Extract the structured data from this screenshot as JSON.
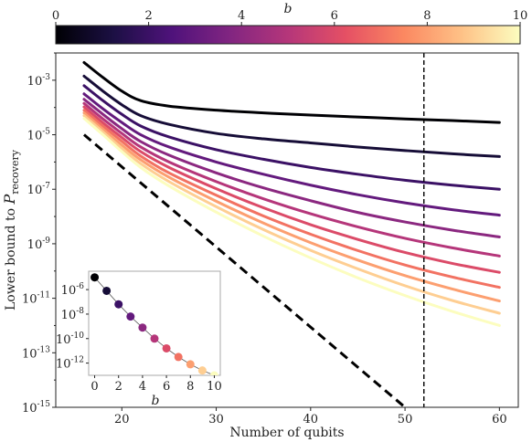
{
  "colormap": {
    "label": "b",
    "min": 0,
    "max": 10,
    "ticks": [
      "0",
      "2",
      "4",
      "6",
      "8",
      "10"
    ],
    "stops": [
      "#000004",
      "#1c1044",
      "#4f127b",
      "#812581",
      "#b5367a",
      "#e55064",
      "#fb8861",
      "#fec287",
      "#fcfdbf"
    ]
  },
  "chart_data": [
    {
      "type": "line",
      "xlabel": "Number of qubits",
      "ylabel_prefix": "Lower bound to ",
      "ylabel_symbol": "P",
      "ylabel_sub": "recovery",
      "xlim": [
        13,
        62
      ],
      "ylim_log10": [
        -15,
        -2
      ],
      "yscale": "log",
      "x_ticks": [
        "20",
        "30",
        "40",
        "50",
        "60"
      ],
      "y_tick_exponents": [
        "-3",
        "-5",
        "-7",
        "-9",
        "-11",
        "-13",
        "-15"
      ],
      "vline_x": 52,
      "vline_style": "dashed",
      "x": [
        16,
        18,
        20,
        22,
        25,
        30,
        35,
        40,
        45,
        50,
        55,
        60
      ],
      "series": [
        {
          "b": 0,
          "log10": [
            -2.35,
            -2.9,
            -3.4,
            -3.75,
            -3.95,
            -4.1,
            -4.2,
            -4.28,
            -4.35,
            -4.42,
            -4.48,
            -4.55
          ]
        },
        {
          "b": 1,
          "log10": [
            -2.85,
            -3.4,
            -3.9,
            -4.3,
            -4.62,
            -4.95,
            -5.15,
            -5.3,
            -5.45,
            -5.58,
            -5.7,
            -5.8
          ]
        },
        {
          "b": 2,
          "log10": [
            -3.2,
            -3.75,
            -4.25,
            -4.68,
            -5.08,
            -5.55,
            -5.9,
            -6.2,
            -6.45,
            -6.67,
            -6.85,
            -7.0
          ]
        },
        {
          "b": 3,
          "log10": [
            -3.5,
            -4.05,
            -4.55,
            -5.0,
            -5.45,
            -6.0,
            -6.45,
            -6.85,
            -7.2,
            -7.5,
            -7.75,
            -7.95
          ]
        },
        {
          "b": 4,
          "log10": [
            -3.7,
            -4.25,
            -4.78,
            -5.25,
            -5.75,
            -6.4,
            -6.95,
            -7.42,
            -7.85,
            -8.2,
            -8.5,
            -8.75
          ]
        },
        {
          "b": 5,
          "log10": [
            -3.85,
            -4.42,
            -4.95,
            -5.45,
            -6.0,
            -6.72,
            -7.35,
            -7.9,
            -8.38,
            -8.8,
            -9.15,
            -9.45
          ]
        },
        {
          "b": 6,
          "log10": [
            -3.98,
            -4.56,
            -5.1,
            -5.62,
            -6.2,
            -6.98,
            -7.68,
            -8.3,
            -8.84,
            -9.32,
            -9.72,
            -10.05
          ]
        },
        {
          "b": 7,
          "log10": [
            -4.1,
            -4.68,
            -5.24,
            -5.78,
            -6.4,
            -7.22,
            -7.98,
            -8.65,
            -9.25,
            -9.78,
            -10.22,
            -10.6
          ]
        },
        {
          "b": 8,
          "log10": [
            -4.2,
            -4.8,
            -5.38,
            -5.92,
            -6.56,
            -7.44,
            -8.24,
            -8.96,
            -9.6,
            -10.17,
            -10.66,
            -11.1
          ]
        },
        {
          "b": 9,
          "log10": [
            -4.3,
            -4.9,
            -5.5,
            -6.06,
            -6.72,
            -7.64,
            -8.48,
            -9.24,
            -9.92,
            -10.54,
            -11.08,
            -11.55
          ]
        },
        {
          "b": 10,
          "log10": [
            -4.4,
            -5.0,
            -5.62,
            -6.2,
            -6.88,
            -7.84,
            -8.72,
            -9.52,
            -10.25,
            -10.9,
            -11.48,
            -12.0
          ]
        }
      ],
      "reference_line": {
        "style": "dashed",
        "x": [
          16,
          50
        ],
        "log10": [
          -5.0,
          -15.0
        ]
      }
    },
    {
      "type": "scatter",
      "inset": true,
      "xlabel": "b",
      "xlim": [
        -0.5,
        10.5
      ],
      "ylim_log10": [
        -13,
        -4.5
      ],
      "yscale": "log",
      "x_ticks": [
        "0",
        "2",
        "4",
        "6",
        "8",
        "10"
      ],
      "y_tick_exponents": [
        "-6",
        "-8",
        "-10",
        "-12"
      ],
      "x": [
        0,
        1,
        2,
        3,
        4,
        5,
        6,
        7,
        8,
        9,
        10
      ],
      "log10": [
        -5.0,
        -6.1,
        -7.2,
        -8.2,
        -9.1,
        -10.0,
        -10.8,
        -11.5,
        -12.1,
        -12.6,
        -13.0
      ]
    }
  ]
}
